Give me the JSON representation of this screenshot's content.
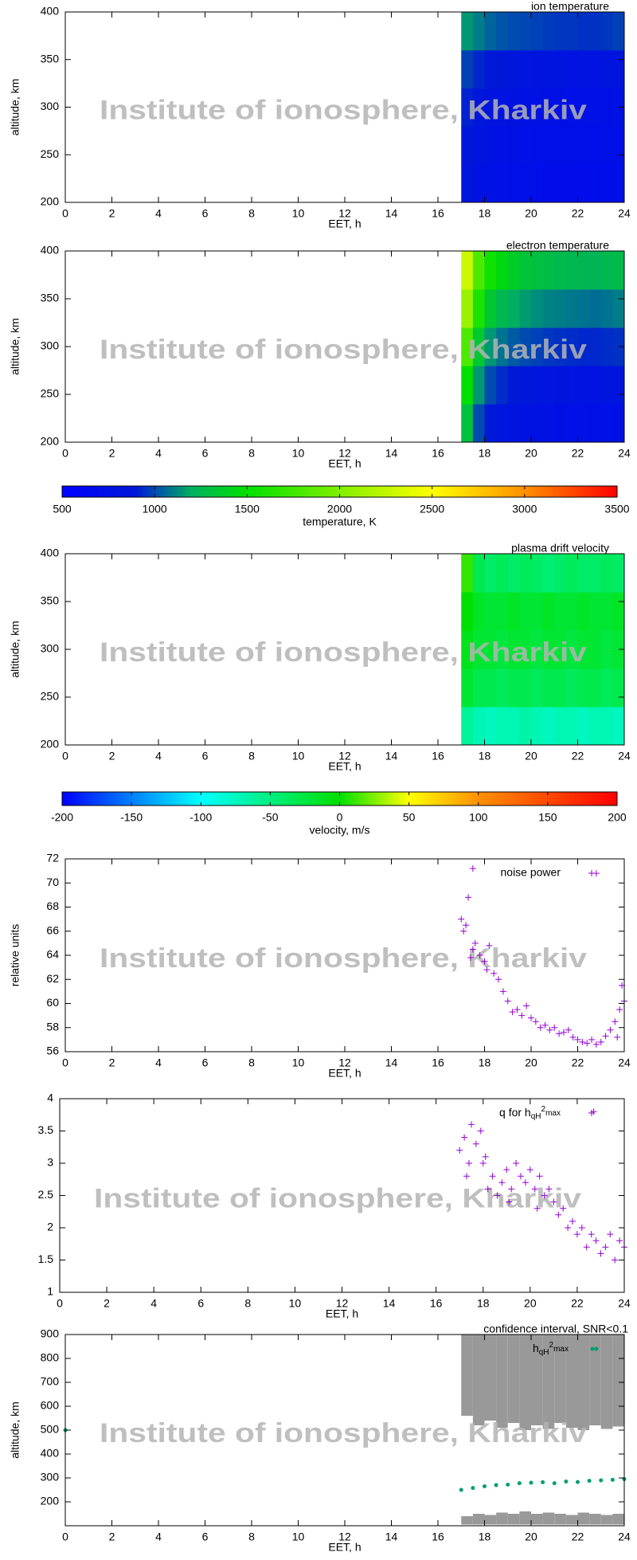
{
  "watermark": "Institute of ionosphere, Kharkiv",
  "chart_data": [
    {
      "type": "heatmap",
      "title": "ion temperature",
      "xlabel": "EET, h",
      "ylabel": "altitude, km",
      "xlim": [
        0,
        24
      ],
      "xticks": [
        0,
        2,
        4,
        6,
        8,
        10,
        12,
        14,
        16,
        18,
        20,
        22,
        24
      ],
      "ylim": [
        200,
        400
      ],
      "yticks": [
        200,
        250,
        300,
        350,
        400
      ],
      "x_edges": [
        17,
        17.5,
        18,
        18.5,
        19,
        19.5,
        20,
        20.5,
        21,
        21.5,
        22,
        22.5,
        23,
        23.5,
        24
      ],
      "y_edges": [
        200,
        240,
        280,
        320,
        360,
        400
      ],
      "z": [
        [
          850,
          800,
          780,
          760,
          750,
          740,
          730,
          720,
          720,
          720,
          710,
          710,
          720,
          730
        ],
        [
          880,
          830,
          800,
          780,
          770,
          760,
          750,
          740,
          740,
          740,
          730,
          730,
          740,
          750
        ],
        [
          920,
          870,
          840,
          820,
          800,
          790,
          780,
          770,
          770,
          760,
          760,
          760,
          770,
          780
        ],
        [
          980,
          930,
          900,
          880,
          860,
          850,
          840,
          830,
          830,
          820,
          820,
          820,
          830,
          840
        ],
        [
          1150,
          1100,
          1050,
          1020,
          1000,
          990,
          980,
          970,
          960,
          960,
          950,
          950,
          960,
          980
        ]
      ],
      "color_stops": [
        {
          "value": 500,
          "color": "#0000ff"
        },
        {
          "value": 900,
          "color": "#0018d8"
        },
        {
          "value": 1200,
          "color": "#00b060"
        },
        {
          "value": 1500,
          "color": "#00e000"
        },
        {
          "value": 2000,
          "color": "#80f000"
        },
        {
          "value": 2500,
          "color": "#ffff00"
        },
        {
          "value": 3000,
          "color": "#ff9000"
        },
        {
          "value": 3500,
          "color": "#ff0000"
        }
      ]
    },
    {
      "type": "heatmap",
      "title": "electron temperature",
      "xlabel": "EET, h",
      "ylabel": "altitude, km",
      "xlim": [
        0,
        24
      ],
      "xticks": [
        0,
        2,
        4,
        6,
        8,
        10,
        12,
        14,
        16,
        18,
        20,
        22,
        24
      ],
      "ylim": [
        200,
        400
      ],
      "yticks": [
        200,
        250,
        300,
        350,
        400
      ],
      "x_edges": [
        17,
        17.5,
        18,
        18.5,
        19,
        19.5,
        20,
        20.5,
        21,
        21.5,
        22,
        22.5,
        23,
        23.5,
        24
      ],
      "y_edges": [
        200,
        240,
        280,
        320,
        360,
        400
      ],
      "z": [
        [
          1300,
          1000,
          900,
          850,
          820,
          800,
          790,
          780,
          770,
          760,
          760,
          750,
          760,
          770
        ],
        [
          1500,
          1150,
          1000,
          940,
          900,
          880,
          860,
          850,
          840,
          830,
          820,
          820,
          830,
          840
        ],
        [
          1800,
          1350,
          1150,
          1080,
          1030,
          1000,
          980,
          960,
          950,
          940,
          930,
          930,
          940,
          950
        ],
        [
          2100,
          1600,
          1350,
          1250,
          1200,
          1160,
          1130,
          1110,
          1100,
          1090,
          1080,
          1070,
          1080,
          1100
        ],
        [
          2300,
          1800,
          1550,
          1450,
          1380,
          1330,
          1300,
          1280,
          1260,
          1250,
          1240,
          1230,
          1250,
          1270
        ]
      ],
      "color_stops": [
        {
          "value": 500,
          "color": "#0000ff"
        },
        {
          "value": 900,
          "color": "#0018d8"
        },
        {
          "value": 1200,
          "color": "#00b060"
        },
        {
          "value": 1500,
          "color": "#00e000"
        },
        {
          "value": 2000,
          "color": "#80f000"
        },
        {
          "value": 2500,
          "color": "#ffff00"
        },
        {
          "value": 3000,
          "color": "#ff9000"
        },
        {
          "value": 3500,
          "color": "#ff0000"
        }
      ]
    },
    {
      "type": "colorbar",
      "xlabel": "temperature, K",
      "xlim": [
        500,
        3500
      ],
      "xticks": [
        500,
        1000,
        1500,
        2000,
        2500,
        3000,
        3500
      ],
      "color_stops": [
        {
          "value": 500,
          "color": "#0000ff"
        },
        {
          "value": 900,
          "color": "#0018d8"
        },
        {
          "value": 1200,
          "color": "#00b060"
        },
        {
          "value": 1500,
          "color": "#00e000"
        },
        {
          "value": 2000,
          "color": "#80f000"
        },
        {
          "value": 2500,
          "color": "#ffff00"
        },
        {
          "value": 3000,
          "color": "#ff9000"
        },
        {
          "value": 3500,
          "color": "#ff0000"
        }
      ]
    },
    {
      "type": "heatmap",
      "title": "plasma drift velocity",
      "xlabel": "EET, h",
      "ylabel": "altitude, km",
      "xlim": [
        0,
        24
      ],
      "xticks": [
        0,
        2,
        4,
        6,
        8,
        10,
        12,
        14,
        16,
        18,
        20,
        22,
        24
      ],
      "ylim": [
        200,
        400
      ],
      "yticks": [
        200,
        250,
        300,
        350,
        400
      ],
      "x_edges": [
        17,
        17.5,
        18,
        18.5,
        19,
        19.5,
        20,
        20.5,
        21,
        21.5,
        22,
        22.5,
        23,
        23.5,
        24
      ],
      "y_edges": [
        200,
        240,
        280,
        320,
        360,
        400
      ],
      "z": [
        [
          -60,
          -70,
          -75,
          -70,
          -70,
          -65,
          -70,
          -75,
          -70,
          -70,
          -75,
          -70,
          -70,
          -75
        ],
        [
          -20,
          -30,
          -30,
          -35,
          -30,
          -30,
          -35,
          -30,
          -30,
          -35,
          -30,
          -30,
          -35,
          -30
        ],
        [
          -10,
          -20,
          -20,
          -25,
          -20,
          -20,
          -25,
          -20,
          -20,
          -25,
          -20,
          -20,
          -25,
          -20
        ],
        [
          0,
          -15,
          -20,
          -20,
          -15,
          -20,
          -20,
          -15,
          -20,
          -20,
          -15,
          -20,
          -20,
          -15
        ],
        [
          10,
          -30,
          -40,
          -35,
          -40,
          -35,
          -40,
          -45,
          -40,
          -35,
          -40,
          -40,
          -35,
          -40
        ]
      ],
      "color_stops": [
        {
          "value": -200,
          "color": "#0000ff"
        },
        {
          "value": -100,
          "color": "#00ffff"
        },
        {
          "value": 0,
          "color": "#00e000"
        },
        {
          "value": 50,
          "color": "#ffff00"
        },
        {
          "value": 100,
          "color": "#ff9000"
        },
        {
          "value": 200,
          "color": "#ff0000"
        }
      ]
    },
    {
      "type": "colorbar",
      "xlabel": "velocity, m/s",
      "xlim": [
        -200,
        200
      ],
      "xticks": [
        -200,
        -150,
        -100,
        -50,
        0,
        50,
        100,
        150,
        200
      ],
      "color_stops": [
        {
          "value": -200,
          "color": "#0000ff"
        },
        {
          "value": -100,
          "color": "#00ffff"
        },
        {
          "value": 0,
          "color": "#00e000"
        },
        {
          "value": 50,
          "color": "#ffff00"
        },
        {
          "value": 100,
          "color": "#ff9000"
        },
        {
          "value": 200,
          "color": "#ff0000"
        }
      ]
    },
    {
      "type": "scatter",
      "xlabel": "EET, h",
      "ylabel": "relative units",
      "xlim": [
        0,
        24
      ],
      "xticks": [
        0,
        2,
        4,
        6,
        8,
        10,
        12,
        14,
        16,
        18,
        20,
        22,
        24
      ],
      "ylim": [
        56,
        72
      ],
      "yticks": [
        56,
        58,
        60,
        62,
        64,
        66,
        68,
        70,
        72
      ],
      "series": [
        {
          "name": "noise power",
          "color": "#9400d3",
          "x": [
            17,
            17.1,
            17.2,
            17.3,
            17.4,
            17.5,
            17.6,
            17.8,
            18,
            18.1,
            18.2,
            18.4,
            18.6,
            18.8,
            19,
            19.2,
            19.4,
            19.6,
            19.8,
            20,
            20.2,
            20.4,
            20.6,
            20.8,
            21,
            21.2,
            21.4,
            21.6,
            21.8,
            22,
            22.2,
            22.4,
            22.6,
            22.8,
            23,
            23.2,
            23.4,
            23.6,
            23.7,
            23.8,
            23.9,
            24,
            17.5,
            22.8
          ],
          "values": [
            67,
            66,
            66.5,
            68.8,
            63.8,
            64.5,
            65,
            64,
            63.5,
            62.8,
            64.8,
            62.5,
            62,
            61,
            60.2,
            59.3,
            59.5,
            59,
            59.8,
            58.8,
            58.5,
            58,
            58.2,
            57.8,
            58,
            57.5,
            57.6,
            57.8,
            57.2,
            57,
            56.8,
            56.7,
            57,
            56.6,
            56.8,
            57.3,
            57.8,
            58.5,
            57.2,
            59.5,
            61.5,
            60.2,
            71.2,
            70.8
          ]
        }
      ]
    },
    {
      "type": "scatter",
      "xlabel": "EET, h",
      "xlim": [
        0,
        24
      ],
      "xticks": [
        0,
        2,
        4,
        6,
        8,
        10,
        12,
        14,
        16,
        18,
        20,
        22,
        24
      ],
      "ylim": [
        1,
        4
      ],
      "yticks": [
        1,
        1.5,
        2,
        2.5,
        3,
        3.5,
        4
      ],
      "series": [
        {
          "name": [
            "q for h",
            "qH",
            "2",
            "max"
          ],
          "color": "#9400d3",
          "x": [
            17,
            17.2,
            17.3,
            17.4,
            17.5,
            17.7,
            17.9,
            18,
            18.1,
            18.2,
            18.4,
            18.6,
            18.8,
            19,
            19.1,
            19.2,
            19.4,
            19.6,
            19.8,
            20,
            20.2,
            20.3,
            20.4,
            20.6,
            20.8,
            21,
            21.2,
            21.4,
            21.6,
            21.8,
            22,
            22.2,
            22.4,
            22.6,
            22.7,
            22.8,
            23,
            23.2,
            23.4,
            23.6,
            23.8,
            24
          ],
          "values": [
            3.2,
            3.4,
            2.8,
            3.0,
            3.6,
            3.3,
            3.5,
            3.0,
            3.1,
            2.6,
            2.8,
            2.5,
            2.7,
            2.9,
            2.4,
            2.6,
            3.0,
            2.8,
            2.7,
            2.9,
            2.6,
            2.3,
            2.8,
            2.5,
            2.6,
            2.4,
            2.2,
            2.3,
            2.0,
            2.1,
            1.9,
            2.0,
            1.7,
            1.9,
            3.8,
            1.8,
            1.6,
            1.7,
            1.9,
            1.5,
            1.8,
            1.7
          ]
        }
      ]
    },
    {
      "type": "interval",
      "xlabel": "EET, h",
      "ylabel": "altitude, km",
      "xlim": [
        0,
        24
      ],
      "xticks": [
        0,
        2,
        4,
        6,
        8,
        10,
        12,
        14,
        16,
        18,
        20,
        22,
        24
      ],
      "ylim": [
        100,
        900
      ],
      "yticks": [
        200,
        300,
        400,
        500,
        600,
        700,
        800,
        900
      ],
      "bands": [
        {
          "name": "confidence interval, SNR<0.1",
          "color": "#999999",
          "x": [
            17,
            17.5,
            18,
            18.5,
            19,
            19.5,
            20,
            20.5,
            21,
            21.5,
            22,
            22.5,
            23,
            23.5,
            24
          ],
          "low": [
            560,
            520,
            540,
            510,
            530,
            500,
            520,
            505,
            530,
            510,
            500,
            520,
            505,
            515,
            500
          ],
          "high": [
            900,
            900,
            900,
            900,
            900,
            900,
            900,
            900,
            900,
            900,
            900,
            900,
            900,
            900,
            900
          ]
        },
        {
          "color": "#999999",
          "x": [
            17,
            17.5,
            18,
            18.5,
            19,
            19.5,
            20,
            20.5,
            21,
            21.5,
            22,
            22.5,
            23,
            23.5,
            24
          ],
          "low": [
            105,
            105,
            105,
            105,
            105,
            105,
            105,
            105,
            105,
            105,
            105,
            105,
            105,
            105,
            105
          ],
          "high": [
            140,
            150,
            145,
            155,
            150,
            160,
            150,
            155,
            150,
            145,
            155,
            150,
            145,
            150,
            140
          ]
        }
      ],
      "series": [
        {
          "name": [
            "h",
            "qH",
            "2",
            "max"
          ],
          "color": "#009e73",
          "x": [
            0,
            17,
            17.5,
            18,
            18.5,
            19,
            19.5,
            20,
            20.5,
            21,
            21.5,
            22,
            22.5,
            23,
            23.5,
            24,
            22.8
          ],
          "values": [
            500,
            250,
            258,
            265,
            270,
            272,
            278,
            280,
            282,
            278,
            285,
            283,
            288,
            290,
            292,
            295,
            840
          ]
        }
      ]
    }
  ]
}
